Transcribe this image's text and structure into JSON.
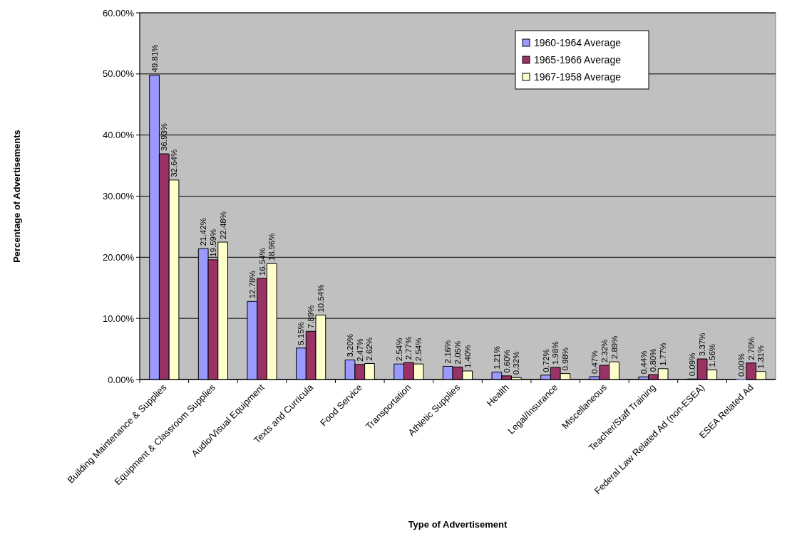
{
  "chart_data": {
    "type": "bar",
    "xlabel": "Type of Advertisement",
    "ylabel": "Percentage of Advertisements",
    "categories": [
      "Building Maintenance & Supplies",
      "Equipment & Classroom Supplies",
      "Audio/Visual Equipment",
      "Texts and Curricula",
      "Food Service",
      "Transportation",
      "Athletic Supplies",
      "Health",
      "Legal/Insurance",
      "Miscellaneous",
      "Teacher/Staff Training",
      "Federal Law Related Ad (non-ESEA)",
      "ESEA Related Ad"
    ],
    "series": [
      {
        "name": "1960-1964 Average",
        "color": "#9999ff",
        "values": [
          49.81,
          21.42,
          12.78,
          5.15,
          3.2,
          2.54,
          2.16,
          1.21,
          0.72,
          0.47,
          0.44,
          0.09,
          0.0
        ],
        "value_labels": [
          "49.81%",
          "21.42%",
          "12.78%",
          "5.15%",
          "3.20%",
          "2.54%",
          "2.16%",
          "1.21%",
          "0.72%",
          "0.47%",
          "0.44%",
          "0.09%",
          "0.00%"
        ]
      },
      {
        "name": "1965-1966 Average",
        "color": "#993366",
        "values": [
          36.93,
          19.59,
          16.54,
          7.89,
          2.47,
          2.77,
          2.05,
          0.6,
          1.98,
          2.32,
          0.8,
          3.37,
          2.7
        ],
        "value_labels": [
          "36.93%",
          "19.59%",
          "16.54%",
          "7.89%",
          "2.47%",
          "2.77%",
          "2.05%",
          "0.60%",
          "1.98%",
          "2.32%",
          "0.80%",
          "3.37%",
          "2.70%"
        ]
      },
      {
        "name": "1967-1958 Average",
        "color": "#ffffcc",
        "values": [
          32.64,
          22.48,
          18.96,
          10.54,
          2.62,
          2.54,
          1.4,
          0.32,
          0.98,
          2.89,
          1.77,
          1.56,
          1.31
        ],
        "value_labels": [
          "32.64%",
          "22.48%",
          "18.96%",
          "10.54%",
          "2.62%",
          "2.54%",
          "1.40%",
          "0.32%",
          "0.98%",
          "2.89%",
          "1.77%",
          "1.56%",
          "1.31%"
        ]
      }
    ],
    "ylim": [
      0,
      60
    ],
    "yticks": [
      {
        "value": 0,
        "label": "0.00%"
      },
      {
        "value": 10,
        "label": "10.00%"
      },
      {
        "value": 20,
        "label": "20.00%"
      },
      {
        "value": 30,
        "label": "30.00%"
      },
      {
        "value": 40,
        "label": "40.00%"
      },
      {
        "value": 50,
        "label": "50.00%"
      },
      {
        "value": 60,
        "label": "60.00%"
      }
    ],
    "grid": "y",
    "legend": "top right"
  }
}
